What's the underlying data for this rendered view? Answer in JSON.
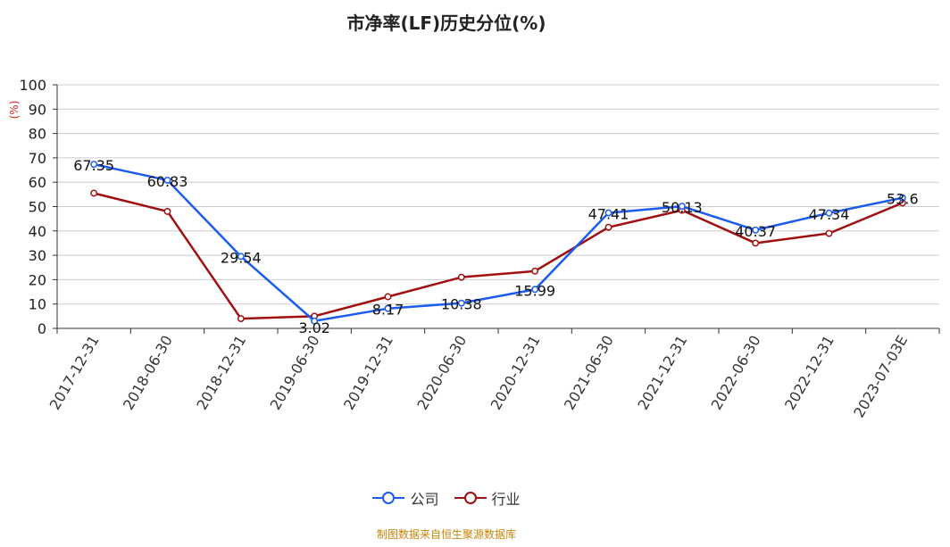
{
  "title": "市净率(LF)历史分位(%)",
  "source": "制图数据来自恒生聚源数据库",
  "colors": {
    "company": "#1a5cf0",
    "industry": "#a01010",
    "source_text": "#c8860a",
    "ylabel": "#e02020",
    "grid": "#cccccc"
  },
  "chart_data": {
    "type": "line",
    "title": "市净率(LF)历史分位(%)",
    "ylabel": "(%)",
    "xlabel": "",
    "ylim": [
      0,
      100
    ],
    "yticks": [
      0,
      10,
      20,
      30,
      40,
      50,
      60,
      70,
      80,
      90,
      100
    ],
    "grid": true,
    "legend_position": "bottom",
    "x": [
      "2017-12-31",
      "2018-06-30",
      "2018-12-31",
      "2019-06-30",
      "2019-12-31",
      "2020-06-30",
      "2020-12-31",
      "2021-06-30",
      "2021-12-31",
      "2022-06-30",
      "2022-12-31",
      "2023-07-03E"
    ],
    "series": [
      {
        "name": "公司",
        "values": [
          67.35,
          60.83,
          29.54,
          3.02,
          8.17,
          10.38,
          15.99,
          47.41,
          50.13,
          40.37,
          47.34,
          53.6
        ],
        "labels": [
          "67.35",
          "60.83",
          "29.54",
          "3.02",
          "8.17",
          "10.38",
          "15.99",
          "47.41",
          "50.13",
          "40.37",
          "47.34",
          "53.6"
        ]
      },
      {
        "name": "行业",
        "values": [
          55.5,
          48.0,
          4.0,
          5.0,
          13.0,
          21.0,
          23.5,
          41.5,
          48.5,
          35.0,
          39.0,
          51.5
        ]
      }
    ]
  }
}
